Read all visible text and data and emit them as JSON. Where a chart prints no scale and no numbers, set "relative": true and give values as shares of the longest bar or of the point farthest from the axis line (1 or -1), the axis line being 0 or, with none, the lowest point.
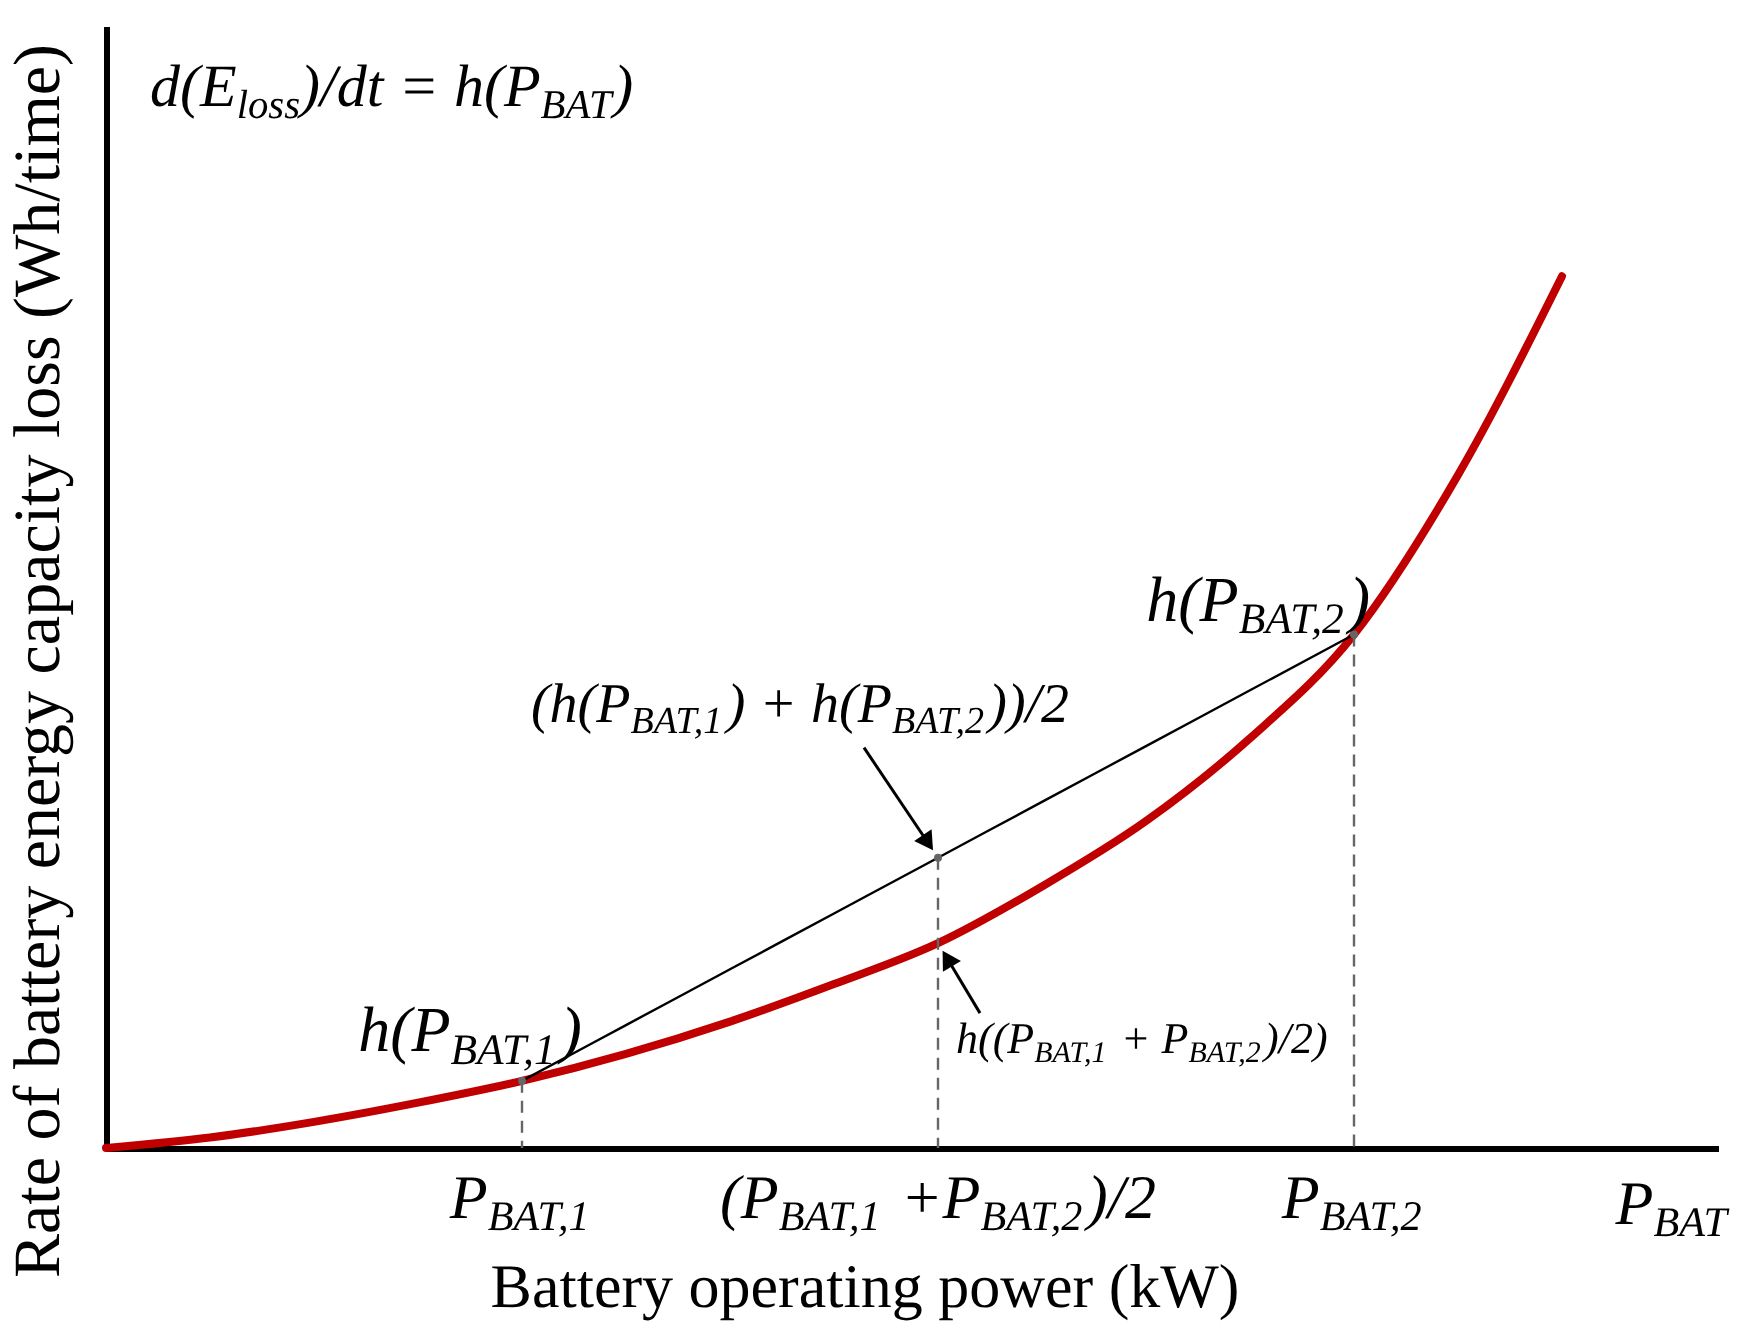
{
  "chart_data": {
    "type": "line",
    "relative": true,
    "xlabel": "Battery operating power (kW)",
    "ylabel": "Rate of battery energy capacity loss (Wh/time)",
    "categories": [
      null,
      null,
      null,
      null,
      "P$_{BAT,1}$",
      null,
      null,
      null,
      "(P$_{BAT,1}$ +P$_{BAT,2}$)/2",
      null,
      null,
      null,
      "P$_{BAT,2}$",
      null,
      null
    ],
    "tick_labels": "x",
    "series": [
      {
        "color": "#c00000",
        "values": [
          0,
          0.012,
          0.03,
          0.052,
          0.077,
          0.108,
          0.145,
          0.188,
          0.235,
          0.3,
          0.375,
          0.47,
          0.589,
          0.772,
          1
        ]
      },
      {
        "color": "#000000",
        "values": [
          null,
          null,
          null,
          null,
          0.077,
          0.141,
          0.205,
          0.269,
          0.333,
          0.397,
          0.461,
          0.525,
          0.589,
          null,
          null
        ]
      },
      {
        "type": "lollipop",
        "color": "#666666",
        "line_style": "dashed",
        "marker": "circle",
        "values": [
          null,
          null,
          null,
          null,
          0.077,
          null,
          null,
          null,
          0.333,
          null,
          null,
          null,
          0.589,
          null,
          null
        ]
      }
    ],
    "annotations": [
      "d(E$_{loss}$)/dt = h(P$_{BAT}$)",
      {
        "text": "h(P$_{BAT,1}$)",
        "x": "P$_{BAT,1}$",
        "y": 0.077
      },
      {
        "text": "h(P$_{BAT,2}$)",
        "x": "P$_{BAT,2}$",
        "y": 0.589
      },
      {
        "text": "(h(P$_{BAT,1}$) + h(P$_{BAT,2}$))/2",
        "x": "(P$_{BAT,1}$ +P$_{BAT,2}$)/2",
        "y": 0.333
      },
      {
        "text": "h((P$_{BAT,1}$ + P$_{BAT,2}$)/2)",
        "x": "(P$_{BAT,1}$ +P$_{BAT,2}$)/2",
        "y": 0.235
      },
      "P$_{BAT}$"
    ]
  }
}
